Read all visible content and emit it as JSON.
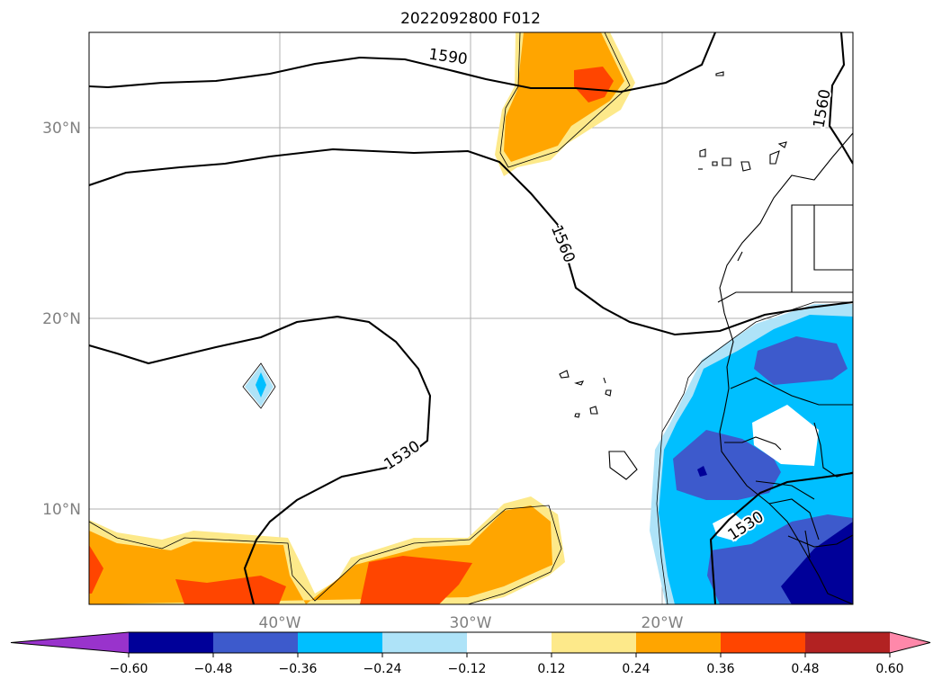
{
  "map": {
    "title": "2022092800 F012",
    "lon_range": [
      -50,
      -10
    ],
    "lat_range": [
      5,
      35
    ],
    "lon_ticks": [
      {
        "lon": -40,
        "label": "40°W"
      },
      {
        "lon": -30,
        "label": "30°W"
      },
      {
        "lon": -20,
        "label": "20°W"
      }
    ],
    "lat_ticks": [
      {
        "lat": 30,
        "label": "30°N"
      },
      {
        "lat": 20,
        "label": "20°N"
      },
      {
        "lat": 10,
        "label": "10°N"
      }
    ],
    "gridlines": true,
    "contour_labels": [
      {
        "text": "1590",
        "lon": -31.2,
        "lat": 33.7,
        "angle": 8
      },
      {
        "text": "1560",
        "lon": -25.2,
        "lat": 23.9,
        "angle": 68
      },
      {
        "text": "1560",
        "lon": -11.6,
        "lat": 31.0,
        "angle": -80
      },
      {
        "text": "1530",
        "lon": -33.6,
        "lat": 12.8,
        "angle": -33
      },
      {
        "text": "1530",
        "lon": -15.6,
        "lat": 9.1,
        "angle": -33
      }
    ]
  },
  "colorbar": {
    "levels": [
      "−0.60",
      "−0.48",
      "−0.36",
      "−0.24",
      "−0.12",
      "0.12",
      "0.24",
      "0.36",
      "0.48",
      "0.60"
    ],
    "colors": [
      "#9933cc",
      "#000099",
      "#3d5acc",
      "#00bfff",
      "#aee3f8",
      "#ffffff",
      "#fde98a",
      "#ffa500",
      "#ff4500",
      "#b22222",
      "#ff88aa"
    ],
    "extend": "both"
  }
}
